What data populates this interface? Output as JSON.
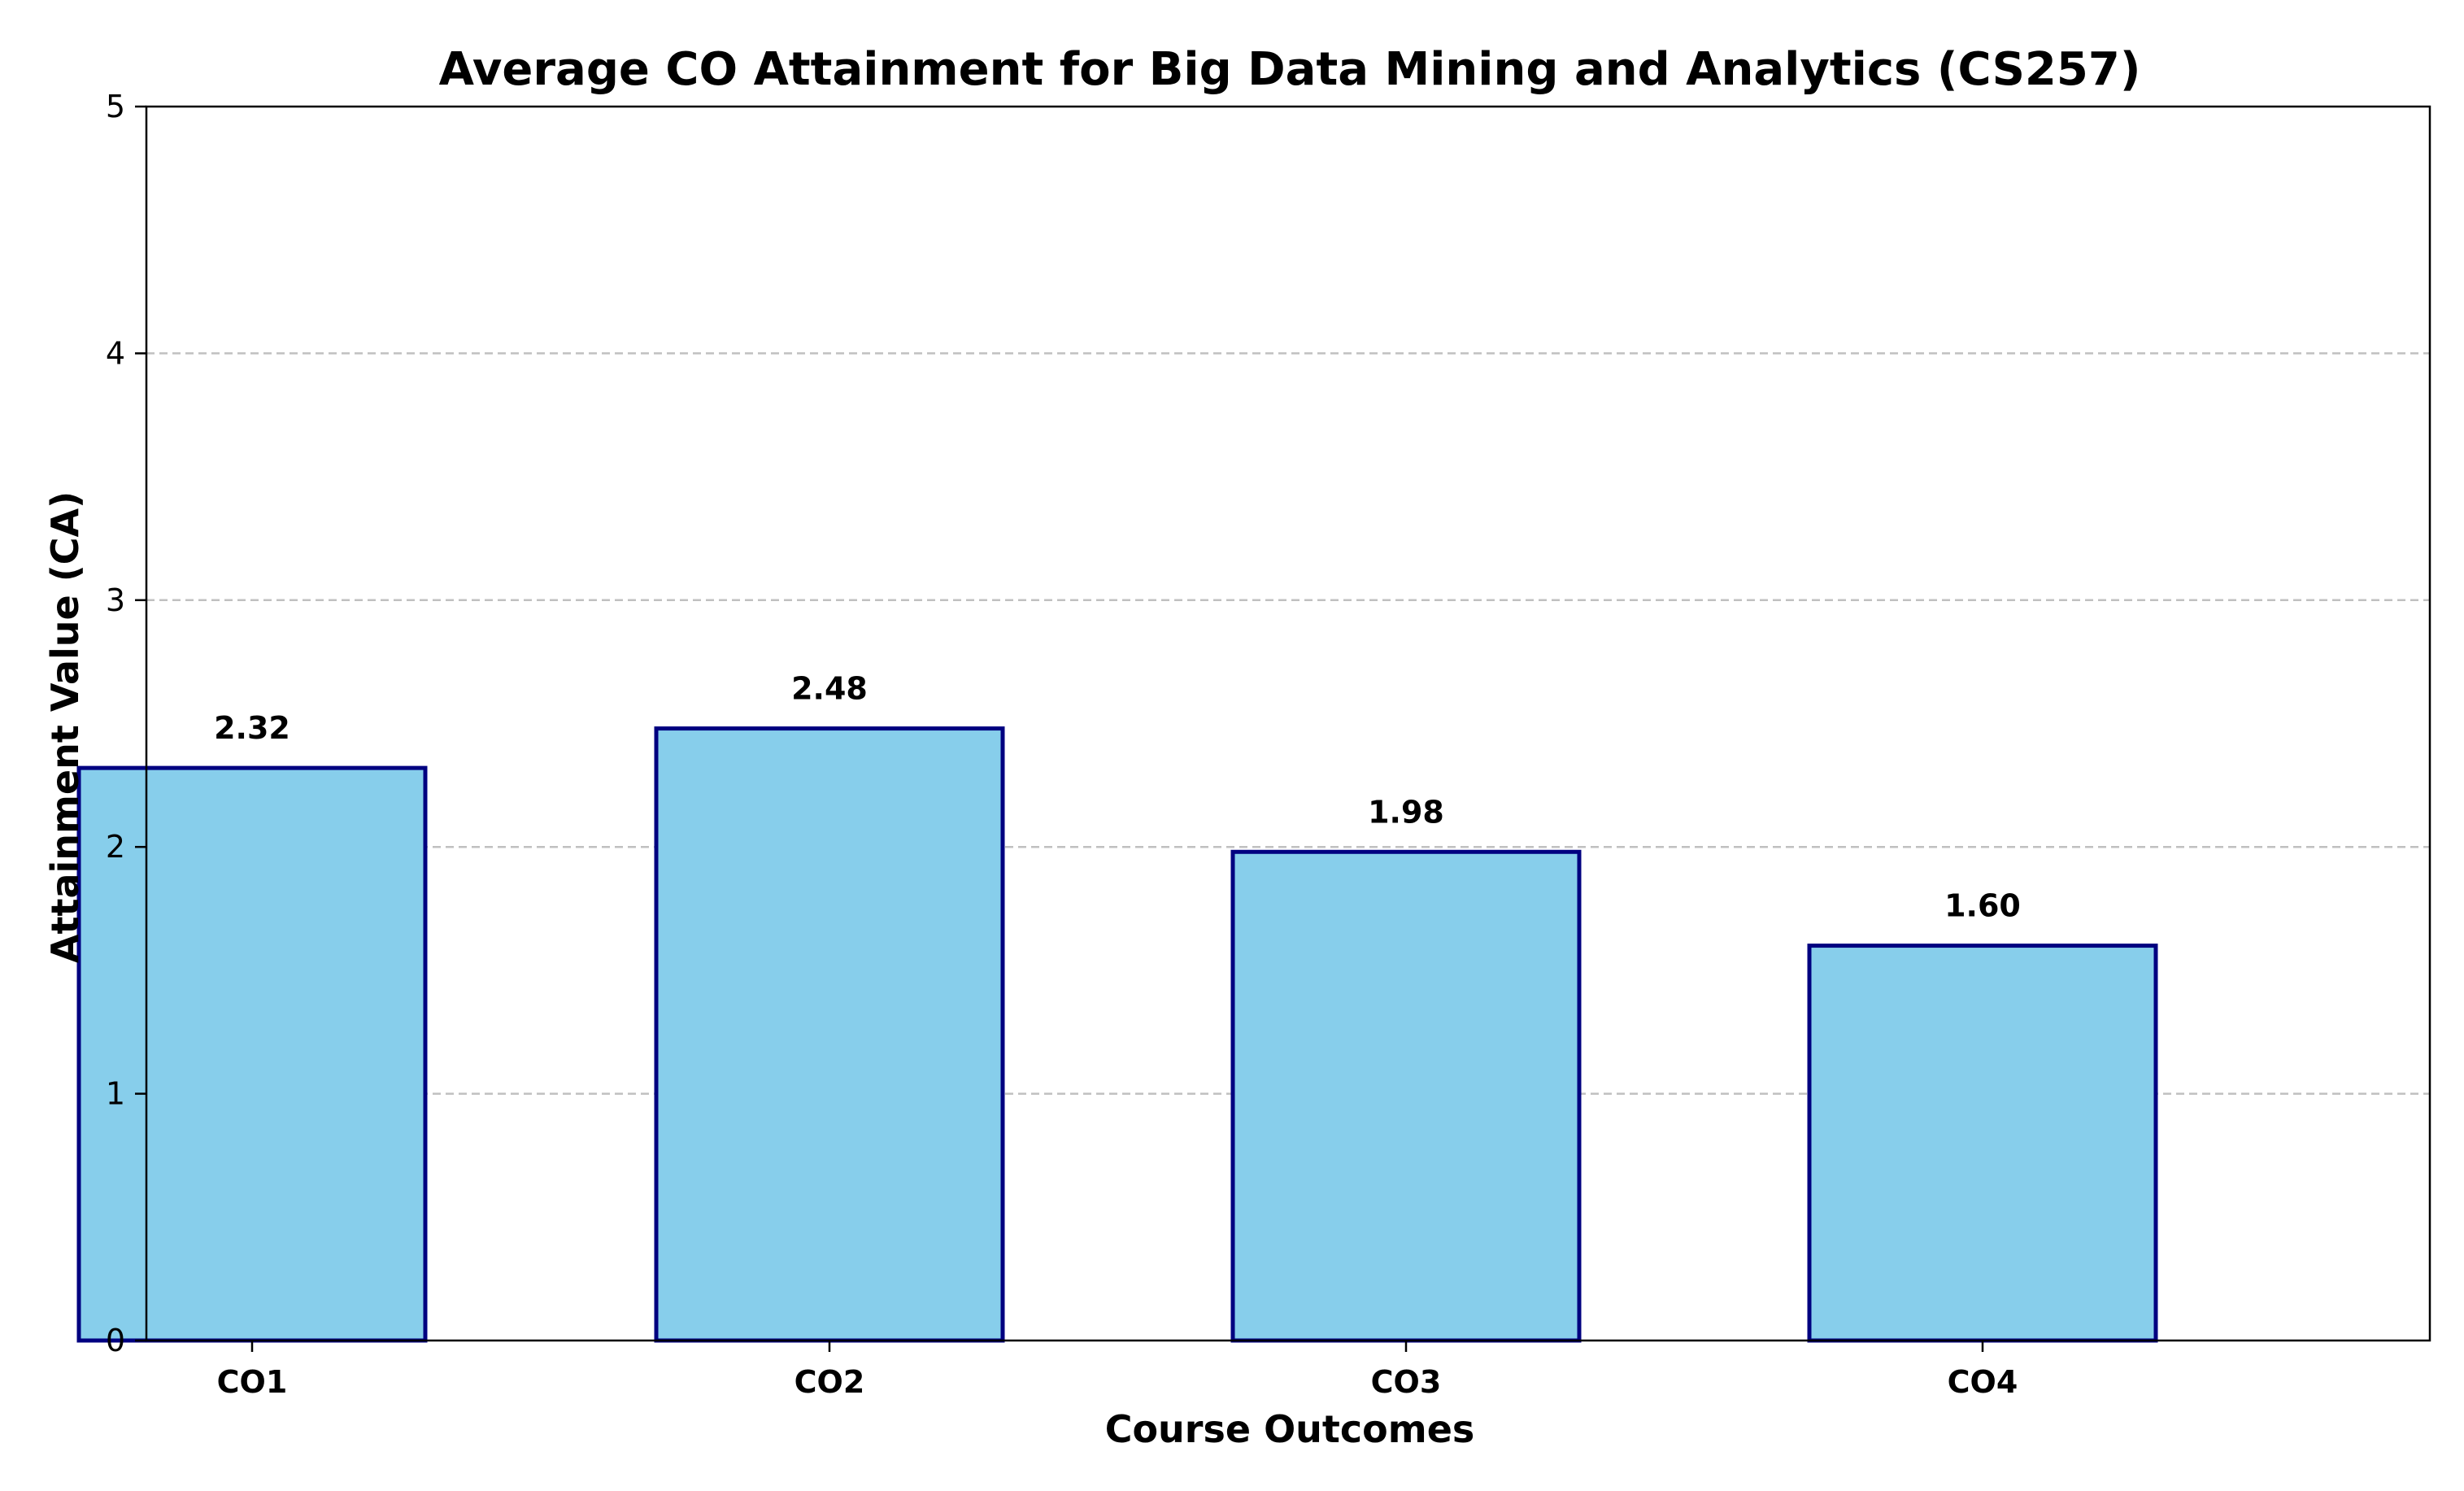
{
  "chart_data": {
    "type": "bar",
    "title": "Average CO Attainment for Big Data Mining and Analytics (CS257)",
    "xlabel": "Course Outcomes",
    "ylabel": "Attainment Value (CA)",
    "categories": [
      "CO1",
      "CO2",
      "CO3",
      "CO4"
    ],
    "values": [
      2.32,
      2.48,
      1.98,
      1.6
    ],
    "data_labels": [
      "2.32",
      "2.48",
      "1.98",
      "1.60"
    ],
    "ylim": [
      0,
      5
    ],
    "yticks": [
      0,
      1,
      2,
      3,
      4,
      5
    ],
    "grid": "y-dashed",
    "legend": "none",
    "colors": {
      "bar_fill": "#87CEEB",
      "bar_edge": "#000080",
      "grid": "#c0c0c0",
      "axis": "#000000"
    }
  }
}
